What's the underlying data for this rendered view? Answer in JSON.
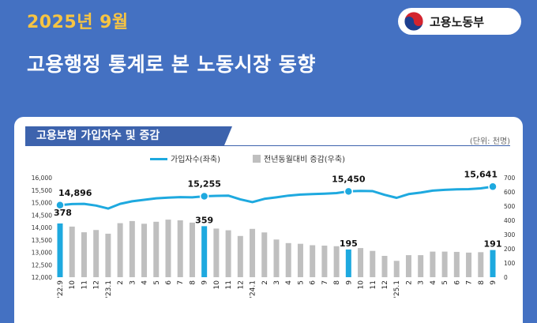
{
  "header": {
    "period": "2025년 9월",
    "title": "고용행정 통계로 본 노동시장 동향",
    "logo_text": "고용노동부"
  },
  "card": {
    "title": "고용보험 가입자수 및 증감",
    "unit": "(단위: 천명)"
  },
  "colors": {
    "line": "#1ea9df",
    "bar": "#bfbfbf",
    "bar_highlight": "#1ea9df",
    "header": "#4471c2",
    "period": "#f6c443"
  },
  "chart_data": {
    "type": "bar+line",
    "categories": [
      "'22.9",
      "10",
      "11",
      "12",
      "'23.1",
      "2",
      "3",
      "4",
      "5",
      "6",
      "7",
      "8",
      "9",
      "10",
      "11",
      "12",
      "'24.1",
      "2",
      "3",
      "4",
      "5",
      "6",
      "7",
      "8",
      "9",
      "10",
      "11",
      "12",
      "'25.1",
      "2",
      "3",
      "4",
      "5",
      "6",
      "7",
      "8",
      "9"
    ],
    "highlight": [
      "'22.9",
      "9",
      "9",
      "9"
    ],
    "highlight_indices": [
      0,
      12,
      24,
      36
    ],
    "legend": {
      "line": "가입자수(좌축)",
      "bar": "전년동월대비 증감(우축)",
      "placement": "top"
    },
    "y_left": {
      "ticks": [
        "12,000",
        "12,500",
        "13,000",
        "13,500",
        "14,000",
        "14,500",
        "15,000",
        "15,500",
        "16,000"
      ],
      "range": [
        12000,
        16000
      ]
    },
    "y_right": {
      "ticks": [
        "0",
        "100",
        "200",
        "300",
        "400",
        "500",
        "600",
        "700"
      ],
      "range": [
        0,
        700
      ]
    },
    "series": [
      {
        "name": "가입자수(좌축)",
        "axis": "left",
        "type": "line",
        "values": [
          14896,
          14940,
          14950,
          14880,
          14760,
          14950,
          15050,
          15110,
          15170,
          15200,
          15220,
          15210,
          15255,
          15270,
          15280,
          15130,
          15020,
          15150,
          15210,
          15280,
          15320,
          15340,
          15360,
          15380,
          15450,
          15470,
          15460,
          15310,
          15190,
          15340,
          15400,
          15480,
          15510,
          15530,
          15540,
          15570,
          15641
        ]
      },
      {
        "name": "전년동월대비 증감(우축)",
        "axis": "right",
        "type": "bar",
        "values": [
          378,
          356,
          316,
          332,
          306,
          380,
          395,
          376,
          390,
          405,
          400,
          384,
          359,
          342,
          330,
          290,
          340,
          315,
          265,
          240,
          235,
          225,
          222,
          218,
          195,
          205,
          185,
          150,
          115,
          155,
          155,
          180,
          180,
          178,
          173,
          176,
          191
        ]
      }
    ],
    "labels": [
      {
        "index": 0,
        "line": "14,896",
        "bar": "378"
      },
      {
        "index": 12,
        "line": "15,255",
        "bar": "359"
      },
      {
        "index": 24,
        "line": "15,450",
        "bar": "195"
      },
      {
        "index": 36,
        "line": "15,641",
        "bar": "191"
      }
    ]
  }
}
